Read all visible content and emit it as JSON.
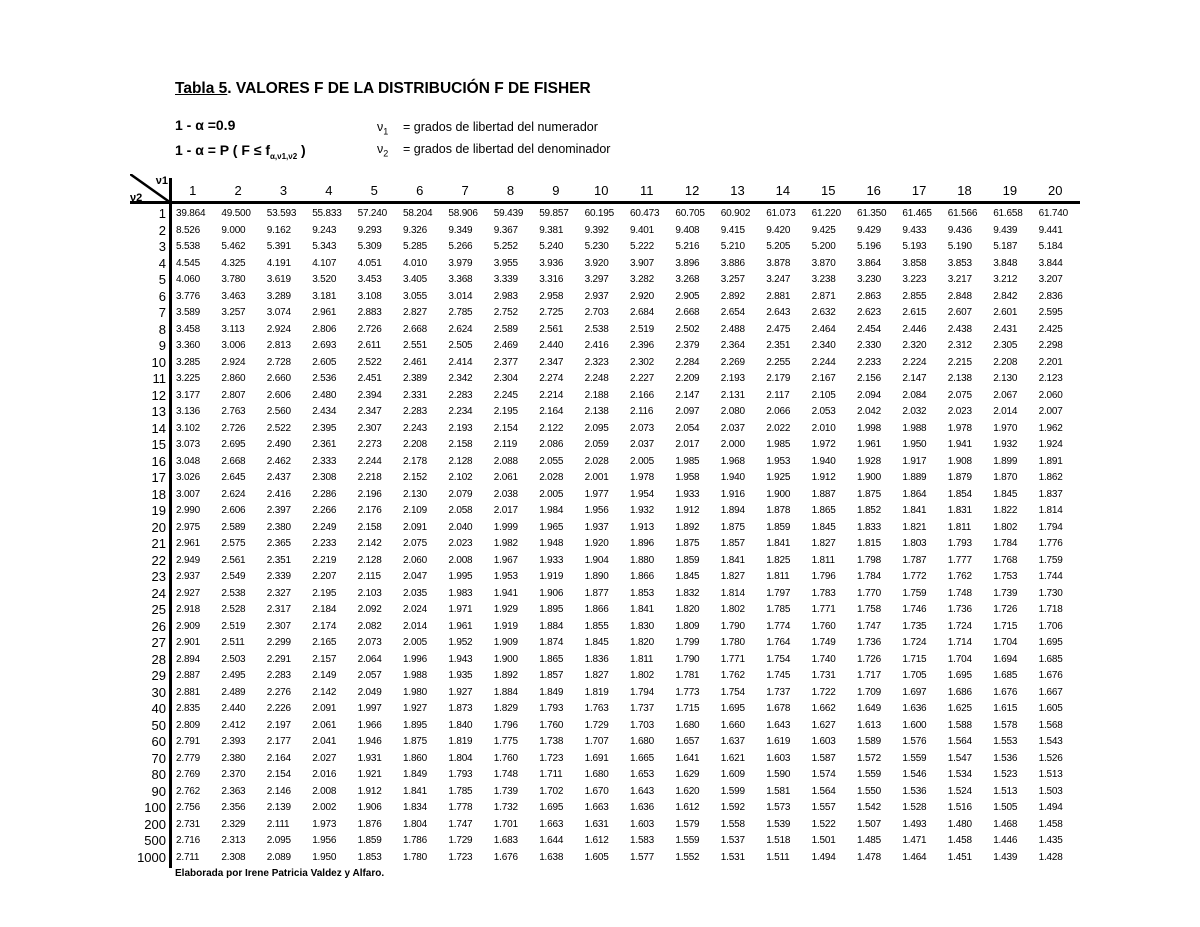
{
  "title": {
    "prefix": "Tabla 5",
    "rest": ". VALORES F DE LA DISTRIBUCIÓN F DE FISHER"
  },
  "params": {
    "confidence": "1 - α =0.9",
    "definition_main": "1 - α = P ( F ≤ f",
    "definition_sub": "α,ν1,ν2",
    "definition_close": " )"
  },
  "legend": [
    {
      "symbol": "ν",
      "sub": "1",
      "text": "= grados de libertad del numerador"
    },
    {
      "symbol": "ν",
      "sub": "2",
      "text": "= grados de libertad del denominador"
    }
  ],
  "corner": {
    "top": "ν1",
    "bottom": "ν2"
  },
  "columns": [
    "1",
    "2",
    "3",
    "4",
    "5",
    "6",
    "7",
    "8",
    "9",
    "10",
    "11",
    "12",
    "13",
    "14",
    "15",
    "16",
    "17",
    "18",
    "19",
    "20"
  ],
  "rows": [
    {
      "v2": "1",
      "values": [
        "39.864",
        "49.500",
        "53.593",
        "55.833",
        "57.240",
        "58.204",
        "58.906",
        "59.439",
        "59.857",
        "60.195",
        "60.473",
        "60.705",
        "60.902",
        "61.073",
        "61.220",
        "61.350",
        "61.465",
        "61.566",
        "61.658",
        "61.740"
      ]
    },
    {
      "v2": "2",
      "values": [
        "8.526",
        "9.000",
        "9.162",
        "9.243",
        "9.293",
        "9.326",
        "9.349",
        "9.367",
        "9.381",
        "9.392",
        "9.401",
        "9.408",
        "9.415",
        "9.420",
        "9.425",
        "9.429",
        "9.433",
        "9.436",
        "9.439",
        "9.441"
      ]
    },
    {
      "v2": "3",
      "values": [
        "5.538",
        "5.462",
        "5.391",
        "5.343",
        "5.309",
        "5.285",
        "5.266",
        "5.252",
        "5.240",
        "5.230",
        "5.222",
        "5.216",
        "5.210",
        "5.205",
        "5.200",
        "5.196",
        "5.193",
        "5.190",
        "5.187",
        "5.184"
      ]
    },
    {
      "v2": "4",
      "values": [
        "4.545",
        "4.325",
        "4.191",
        "4.107",
        "4.051",
        "4.010",
        "3.979",
        "3.955",
        "3.936",
        "3.920",
        "3.907",
        "3.896",
        "3.886",
        "3.878",
        "3.870",
        "3.864",
        "3.858",
        "3.853",
        "3.848",
        "3.844"
      ]
    },
    {
      "v2": "5",
      "values": [
        "4.060",
        "3.780",
        "3.619",
        "3.520",
        "3.453",
        "3.405",
        "3.368",
        "3.339",
        "3.316",
        "3.297",
        "3.282",
        "3.268",
        "3.257",
        "3.247",
        "3.238",
        "3.230",
        "3.223",
        "3.217",
        "3.212",
        "3.207"
      ]
    },
    {
      "v2": "6",
      "values": [
        "3.776",
        "3.463",
        "3.289",
        "3.181",
        "3.108",
        "3.055",
        "3.014",
        "2.983",
        "2.958",
        "2.937",
        "2.920",
        "2.905",
        "2.892",
        "2.881",
        "2.871",
        "2.863",
        "2.855",
        "2.848",
        "2.842",
        "2.836"
      ]
    },
    {
      "v2": "7",
      "values": [
        "3.589",
        "3.257",
        "3.074",
        "2.961",
        "2.883",
        "2.827",
        "2.785",
        "2.752",
        "2.725",
        "2.703",
        "2.684",
        "2.668",
        "2.654",
        "2.643",
        "2.632",
        "2.623",
        "2.615",
        "2.607",
        "2.601",
        "2.595"
      ]
    },
    {
      "v2": "8",
      "values": [
        "3.458",
        "3.113",
        "2.924",
        "2.806",
        "2.726",
        "2.668",
        "2.624",
        "2.589",
        "2.561",
        "2.538",
        "2.519",
        "2.502",
        "2.488",
        "2.475",
        "2.464",
        "2.454",
        "2.446",
        "2.438",
        "2.431",
        "2.425"
      ]
    },
    {
      "v2": "9",
      "values": [
        "3.360",
        "3.006",
        "2.813",
        "2.693",
        "2.611",
        "2.551",
        "2.505",
        "2.469",
        "2.440",
        "2.416",
        "2.396",
        "2.379",
        "2.364",
        "2.351",
        "2.340",
        "2.330",
        "2.320",
        "2.312",
        "2.305",
        "2.298"
      ]
    },
    {
      "v2": "10",
      "values": [
        "3.285",
        "2.924",
        "2.728",
        "2.605",
        "2.522",
        "2.461",
        "2.414",
        "2.377",
        "2.347",
        "2.323",
        "2.302",
        "2.284",
        "2.269",
        "2.255",
        "2.244",
        "2.233",
        "2.224",
        "2.215",
        "2.208",
        "2.201"
      ]
    },
    {
      "v2": "11",
      "values": [
        "3.225",
        "2.860",
        "2.660",
        "2.536",
        "2.451",
        "2.389",
        "2.342",
        "2.304",
        "2.274",
        "2.248",
        "2.227",
        "2.209",
        "2.193",
        "2.179",
        "2.167",
        "2.156",
        "2.147",
        "2.138",
        "2.130",
        "2.123"
      ]
    },
    {
      "v2": "12",
      "values": [
        "3.177",
        "2.807",
        "2.606",
        "2.480",
        "2.394",
        "2.331",
        "2.283",
        "2.245",
        "2.214",
        "2.188",
        "2.166",
        "2.147",
        "2.131",
        "2.117",
        "2.105",
        "2.094",
        "2.084",
        "2.075",
        "2.067",
        "2.060"
      ]
    },
    {
      "v2": "13",
      "values": [
        "3.136",
        "2.763",
        "2.560",
        "2.434",
        "2.347",
        "2.283",
        "2.234",
        "2.195",
        "2.164",
        "2.138",
        "2.116",
        "2.097",
        "2.080",
        "2.066",
        "2.053",
        "2.042",
        "2.032",
        "2.023",
        "2.014",
        "2.007"
      ]
    },
    {
      "v2": "14",
      "values": [
        "3.102",
        "2.726",
        "2.522",
        "2.395",
        "2.307",
        "2.243",
        "2.193",
        "2.154",
        "2.122",
        "2.095",
        "2.073",
        "2.054",
        "2.037",
        "2.022",
        "2.010",
        "1.998",
        "1.988",
        "1.978",
        "1.970",
        "1.962"
      ]
    },
    {
      "v2": "15",
      "values": [
        "3.073",
        "2.695",
        "2.490",
        "2.361",
        "2.273",
        "2.208",
        "2.158",
        "2.119",
        "2.086",
        "2.059",
        "2.037",
        "2.017",
        "2.000",
        "1.985",
        "1.972",
        "1.961",
        "1.950",
        "1.941",
        "1.932",
        "1.924"
      ]
    },
    {
      "v2": "16",
      "values": [
        "3.048",
        "2.668",
        "2.462",
        "2.333",
        "2.244",
        "2.178",
        "2.128",
        "2.088",
        "2.055",
        "2.028",
        "2.005",
        "1.985",
        "1.968",
        "1.953",
        "1.940",
        "1.928",
        "1.917",
        "1.908",
        "1.899",
        "1.891"
      ]
    },
    {
      "v2": "17",
      "values": [
        "3.026",
        "2.645",
        "2.437",
        "2.308",
        "2.218",
        "2.152",
        "2.102",
        "2.061",
        "2.028",
        "2.001",
        "1.978",
        "1.958",
        "1.940",
        "1.925",
        "1.912",
        "1.900",
        "1.889",
        "1.879",
        "1.870",
        "1.862"
      ]
    },
    {
      "v2": "18",
      "values": [
        "3.007",
        "2.624",
        "2.416",
        "2.286",
        "2.196",
        "2.130",
        "2.079",
        "2.038",
        "2.005",
        "1.977",
        "1.954",
        "1.933",
        "1.916",
        "1.900",
        "1.887",
        "1.875",
        "1.864",
        "1.854",
        "1.845",
        "1.837"
      ]
    },
    {
      "v2": "19",
      "values": [
        "2.990",
        "2.606",
        "2.397",
        "2.266",
        "2.176",
        "2.109",
        "2.058",
        "2.017",
        "1.984",
        "1.956",
        "1.932",
        "1.912",
        "1.894",
        "1.878",
        "1.865",
        "1.852",
        "1.841",
        "1.831",
        "1.822",
        "1.814"
      ]
    },
    {
      "v2": "20",
      "values": [
        "2.975",
        "2.589",
        "2.380",
        "2.249",
        "2.158",
        "2.091",
        "2.040",
        "1.999",
        "1.965",
        "1.937",
        "1.913",
        "1.892",
        "1.875",
        "1.859",
        "1.845",
        "1.833",
        "1.821",
        "1.811",
        "1.802",
        "1.794"
      ]
    },
    {
      "v2": "21",
      "values": [
        "2.961",
        "2.575",
        "2.365",
        "2.233",
        "2.142",
        "2.075",
        "2.023",
        "1.982",
        "1.948",
        "1.920",
        "1.896",
        "1.875",
        "1.857",
        "1.841",
        "1.827",
        "1.815",
        "1.803",
        "1.793",
        "1.784",
        "1.776"
      ]
    },
    {
      "v2": "22",
      "values": [
        "2.949",
        "2.561",
        "2.351",
        "2.219",
        "2.128",
        "2.060",
        "2.008",
        "1.967",
        "1.933",
        "1.904",
        "1.880",
        "1.859",
        "1.841",
        "1.825",
        "1.811",
        "1.798",
        "1.787",
        "1.777",
        "1.768",
        "1.759"
      ]
    },
    {
      "v2": "23",
      "values": [
        "2.937",
        "2.549",
        "2.339",
        "2.207",
        "2.115",
        "2.047",
        "1.995",
        "1.953",
        "1.919",
        "1.890",
        "1.866",
        "1.845",
        "1.827",
        "1.811",
        "1.796",
        "1.784",
        "1.772",
        "1.762",
        "1.753",
        "1.744"
      ]
    },
    {
      "v2": "24",
      "values": [
        "2.927",
        "2.538",
        "2.327",
        "2.195",
        "2.103",
        "2.035",
        "1.983",
        "1.941",
        "1.906",
        "1.877",
        "1.853",
        "1.832",
        "1.814",
        "1.797",
        "1.783",
        "1.770",
        "1.759",
        "1.748",
        "1.739",
        "1.730"
      ]
    },
    {
      "v2": "25",
      "values": [
        "2.918",
        "2.528",
        "2.317",
        "2.184",
        "2.092",
        "2.024",
        "1.971",
        "1.929",
        "1.895",
        "1.866",
        "1.841",
        "1.820",
        "1.802",
        "1.785",
        "1.771",
        "1.758",
        "1.746",
        "1.736",
        "1.726",
        "1.718"
      ]
    },
    {
      "v2": "26",
      "values": [
        "2.909",
        "2.519",
        "2.307",
        "2.174",
        "2.082",
        "2.014",
        "1.961",
        "1.919",
        "1.884",
        "1.855",
        "1.830",
        "1.809",
        "1.790",
        "1.774",
        "1.760",
        "1.747",
        "1.735",
        "1.724",
        "1.715",
        "1.706"
      ]
    },
    {
      "v2": "27",
      "values": [
        "2.901",
        "2.511",
        "2.299",
        "2.165",
        "2.073",
        "2.005",
        "1.952",
        "1.909",
        "1.874",
        "1.845",
        "1.820",
        "1.799",
        "1.780",
        "1.764",
        "1.749",
        "1.736",
        "1.724",
        "1.714",
        "1.704",
        "1.695"
      ]
    },
    {
      "v2": "28",
      "values": [
        "2.894",
        "2.503",
        "2.291",
        "2.157",
        "2.064",
        "1.996",
        "1.943",
        "1.900",
        "1.865",
        "1.836",
        "1.811",
        "1.790",
        "1.771",
        "1.754",
        "1.740",
        "1.726",
        "1.715",
        "1.704",
        "1.694",
        "1.685"
      ]
    },
    {
      "v2": "29",
      "values": [
        "2.887",
        "2.495",
        "2.283",
        "2.149",
        "2.057",
        "1.988",
        "1.935",
        "1.892",
        "1.857",
        "1.827",
        "1.802",
        "1.781",
        "1.762",
        "1.745",
        "1.731",
        "1.717",
        "1.705",
        "1.695",
        "1.685",
        "1.676"
      ]
    },
    {
      "v2": "30",
      "values": [
        "2.881",
        "2.489",
        "2.276",
        "2.142",
        "2.049",
        "1.980",
        "1.927",
        "1.884",
        "1.849",
        "1.819",
        "1.794",
        "1.773",
        "1.754",
        "1.737",
        "1.722",
        "1.709",
        "1.697",
        "1.686",
        "1.676",
        "1.667"
      ]
    },
    {
      "v2": "40",
      "values": [
        "2.835",
        "2.440",
        "2.226",
        "2.091",
        "1.997",
        "1.927",
        "1.873",
        "1.829",
        "1.793",
        "1.763",
        "1.737",
        "1.715",
        "1.695",
        "1.678",
        "1.662",
        "1.649",
        "1.636",
        "1.625",
        "1.615",
        "1.605"
      ]
    },
    {
      "v2": "50",
      "values": [
        "2.809",
        "2.412",
        "2.197",
        "2.061",
        "1.966",
        "1.895",
        "1.840",
        "1.796",
        "1.760",
        "1.729",
        "1.703",
        "1.680",
        "1.660",
        "1.643",
        "1.627",
        "1.613",
        "1.600",
        "1.588",
        "1.578",
        "1.568"
      ]
    },
    {
      "v2": "60",
      "values": [
        "2.791",
        "2.393",
        "2.177",
        "2.041",
        "1.946",
        "1.875",
        "1.819",
        "1.775",
        "1.738",
        "1.707",
        "1.680",
        "1.657",
        "1.637",
        "1.619",
        "1.603",
        "1.589",
        "1.576",
        "1.564",
        "1.553",
        "1.543"
      ]
    },
    {
      "v2": "70",
      "values": [
        "2.779",
        "2.380",
        "2.164",
        "2.027",
        "1.931",
        "1.860",
        "1.804",
        "1.760",
        "1.723",
        "1.691",
        "1.665",
        "1.641",
        "1.621",
        "1.603",
        "1.587",
        "1.572",
        "1.559",
        "1.547",
        "1.536",
        "1.526"
      ]
    },
    {
      "v2": "80",
      "values": [
        "2.769",
        "2.370",
        "2.154",
        "2.016",
        "1.921",
        "1.849",
        "1.793",
        "1.748",
        "1.711",
        "1.680",
        "1.653",
        "1.629",
        "1.609",
        "1.590",
        "1.574",
        "1.559",
        "1.546",
        "1.534",
        "1.523",
        "1.513"
      ]
    },
    {
      "v2": "90",
      "values": [
        "2.762",
        "2.363",
        "2.146",
        "2.008",
        "1.912",
        "1.841",
        "1.785",
        "1.739",
        "1.702",
        "1.670",
        "1.643",
        "1.620",
        "1.599",
        "1.581",
        "1.564",
        "1.550",
        "1.536",
        "1.524",
        "1.513",
        "1.503"
      ]
    },
    {
      "v2": "100",
      "values": [
        "2.756",
        "2.356",
        "2.139",
        "2.002",
        "1.906",
        "1.834",
        "1.778",
        "1.732",
        "1.695",
        "1.663",
        "1.636",
        "1.612",
        "1.592",
        "1.573",
        "1.557",
        "1.542",
        "1.528",
        "1.516",
        "1.505",
        "1.494"
      ]
    },
    {
      "v2": "200",
      "values": [
        "2.731",
        "2.329",
        "2.111",
        "1.973",
        "1.876",
        "1.804",
        "1.747",
        "1.701",
        "1.663",
        "1.631",
        "1.603",
        "1.579",
        "1.558",
        "1.539",
        "1.522",
        "1.507",
        "1.493",
        "1.480",
        "1.468",
        "1.458"
      ]
    },
    {
      "v2": "500",
      "values": [
        "2.716",
        "2.313",
        "2.095",
        "1.956",
        "1.859",
        "1.786",
        "1.729",
        "1.683",
        "1.644",
        "1.612",
        "1.583",
        "1.559",
        "1.537",
        "1.518",
        "1.501",
        "1.485",
        "1.471",
        "1.458",
        "1.446",
        "1.435"
      ]
    },
    {
      "v2": "1000",
      "values": [
        "2.711",
        "2.308",
        "2.089",
        "1.950",
        "1.853",
        "1.780",
        "1.723",
        "1.676",
        "1.638",
        "1.605",
        "1.577",
        "1.552",
        "1.531",
        "1.511",
        "1.494",
        "1.478",
        "1.464",
        "1.451",
        "1.439",
        "1.428"
      ]
    }
  ],
  "footer": "Elaborada por Irene Patricia Valdez y Alfaro."
}
